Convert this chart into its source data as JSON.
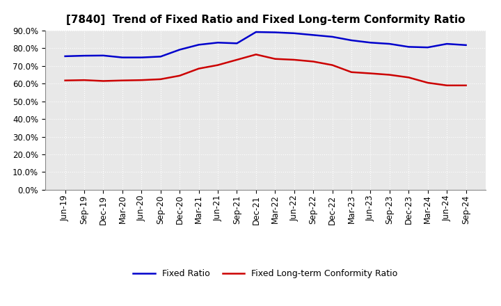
{
  "title": "[7840]  Trend of Fixed Ratio and Fixed Long-term Conformity Ratio",
  "x_labels": [
    "Jun-19",
    "Sep-19",
    "Dec-19",
    "Mar-20",
    "Jun-20",
    "Sep-20",
    "Dec-20",
    "Mar-21",
    "Jun-21",
    "Sep-21",
    "Dec-21",
    "Mar-22",
    "Jun-22",
    "Sep-22",
    "Dec-22",
    "Mar-23",
    "Jun-23",
    "Sep-23",
    "Dec-23",
    "Mar-24",
    "Jun-24",
    "Sep-24"
  ],
  "fixed_ratio": [
    75.5,
    75.8,
    75.9,
    74.8,
    74.8,
    75.3,
    79.2,
    82.0,
    83.2,
    82.8,
    89.2,
    89.0,
    88.5,
    87.5,
    86.5,
    84.5,
    83.2,
    82.5,
    80.8,
    80.5,
    82.5,
    81.8
  ],
  "fixed_lt_ratio": [
    61.8,
    62.0,
    61.5,
    61.8,
    62.0,
    62.5,
    64.5,
    68.5,
    70.5,
    73.5,
    76.5,
    74.0,
    73.5,
    72.5,
    70.5,
    66.5,
    65.8,
    65.0,
    63.5,
    60.5,
    59.0,
    59.0
  ],
  "fixed_ratio_color": "#0000cc",
  "fixed_lt_ratio_color": "#cc0000",
  "ylim_min": 0,
  "ylim_max": 90,
  "yticks": [
    0,
    10,
    20,
    30,
    40,
    50,
    60,
    70,
    80,
    90
  ],
  "figure_bg": "#ffffff",
  "plot_bg": "#e8e8e8",
  "grid_color": "#ffffff",
  "legend_fixed": "Fixed Ratio",
  "legend_fixed_lt": "Fixed Long-term Conformity Ratio",
  "title_fontsize": 11,
  "tick_fontsize": 8.5,
  "legend_fontsize": 9
}
